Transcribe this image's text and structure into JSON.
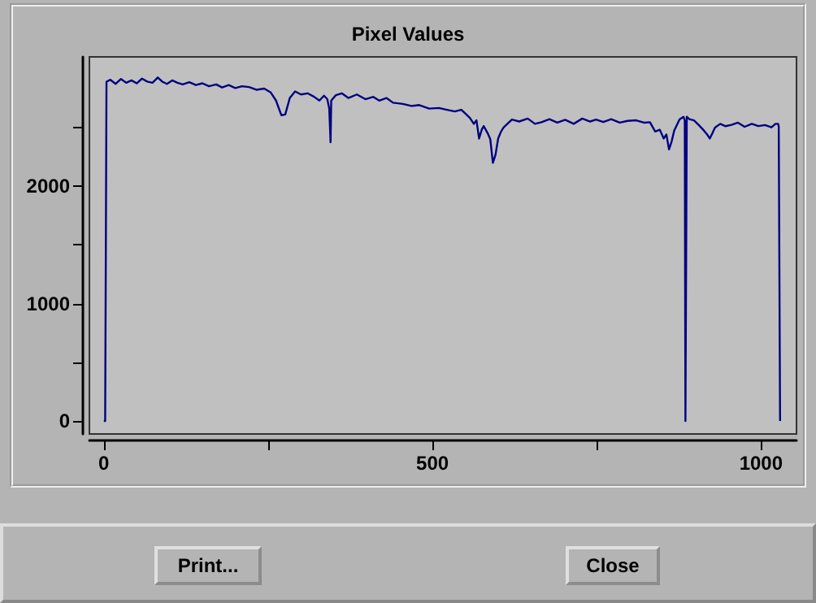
{
  "chart_data": {
    "type": "line",
    "title": "Pixel Values",
    "x": [
      0,
      2,
      4,
      10,
      18,
      26,
      34,
      42,
      50,
      58,
      66,
      74,
      82,
      89,
      96,
      104,
      112,
      120,
      130,
      140,
      150,
      160,
      171,
      180,
      190,
      200,
      210,
      221,
      232,
      244,
      254,
      262,
      270,
      276,
      283,
      291,
      300,
      310,
      320,
      328,
      335,
      340,
      343,
      345,
      346,
      353,
      362,
      372,
      385,
      398,
      410,
      419,
      430,
      440,
      455,
      468,
      480,
      495,
      510,
      522,
      534,
      544,
      551,
      557,
      563,
      567,
      571,
      575,
      578,
      584,
      588,
      592,
      596,
      600,
      604,
      608,
      614,
      621,
      632,
      645,
      656,
      666,
      678,
      690,
      702,
      715,
      728,
      740,
      749,
      760,
      772,
      785,
      797,
      810,
      822,
      831,
      839,
      846,
      852,
      856,
      860,
      864,
      868,
      876,
      882,
      884,
      885,
      886,
      887,
      891,
      898,
      905,
      912,
      918,
      922,
      926,
      930,
      938,
      946,
      955,
      965,
      975,
      986,
      996,
      1006,
      1016,
      1022,
      1026,
      1027,
      1029
    ],
    "series": [
      {
        "color": "#000080",
        "values": [
          0,
          0,
          2889,
          2905,
          2870,
          2912,
          2880,
          2900,
          2875,
          2915,
          2890,
          2880,
          2925,
          2889,
          2870,
          2900,
          2880,
          2866,
          2885,
          2860,
          2875,
          2850,
          2866,
          2840,
          2860,
          2835,
          2850,
          2843,
          2820,
          2830,
          2797,
          2728,
          2604,
          2610,
          2751,
          2806,
          2780,
          2790,
          2760,
          2728,
          2770,
          2740,
          2659,
          2373,
          2728,
          2774,
          2790,
          2750,
          2780,
          2740,
          2760,
          2728,
          2750,
          2710,
          2700,
          2682,
          2690,
          2660,
          2665,
          2650,
          2636,
          2650,
          2613,
          2580,
          2530,
          2560,
          2405,
          2480,
          2511,
          2451,
          2400,
          2198,
          2267,
          2405,
          2460,
          2498,
          2530,
          2567,
          2550,
          2575,
          2530,
          2544,
          2570,
          2540,
          2565,
          2530,
          2575,
          2550,
          2567,
          2545,
          2570,
          2540,
          2555,
          2560,
          2540,
          2544,
          2465,
          2480,
          2405,
          2440,
          2313,
          2380,
          2474,
          2567,
          2590,
          2560,
          0,
          0,
          2590,
          2570,
          2560,
          2521,
          2480,
          2440,
          2405,
          2450,
          2498,
          2530,
          2510,
          2521,
          2540,
          2505,
          2530,
          2511,
          2520,
          2500,
          2530,
          2530,
          2510,
          0
        ]
      }
    ],
    "xlim": [
      -22,
      1054
    ],
    "ylim": [
      -110,
      3100
    ],
    "xticks": [
      0,
      {
        "value": 250,
        "label": null
      },
      500,
      {
        "value": 750,
        "label": null
      },
      1000
    ],
    "yticks": [
      0,
      {
        "value": 500,
        "label": null
      },
      1000,
      {
        "value": 1500,
        "label": null
      },
      2000,
      {
        "value": 2500,
        "label": null
      }
    ],
    "grid": false,
    "marker": "none",
    "line_style": "solid",
    "annotations": [
      "Print...",
      "Close"
    ]
  }
}
